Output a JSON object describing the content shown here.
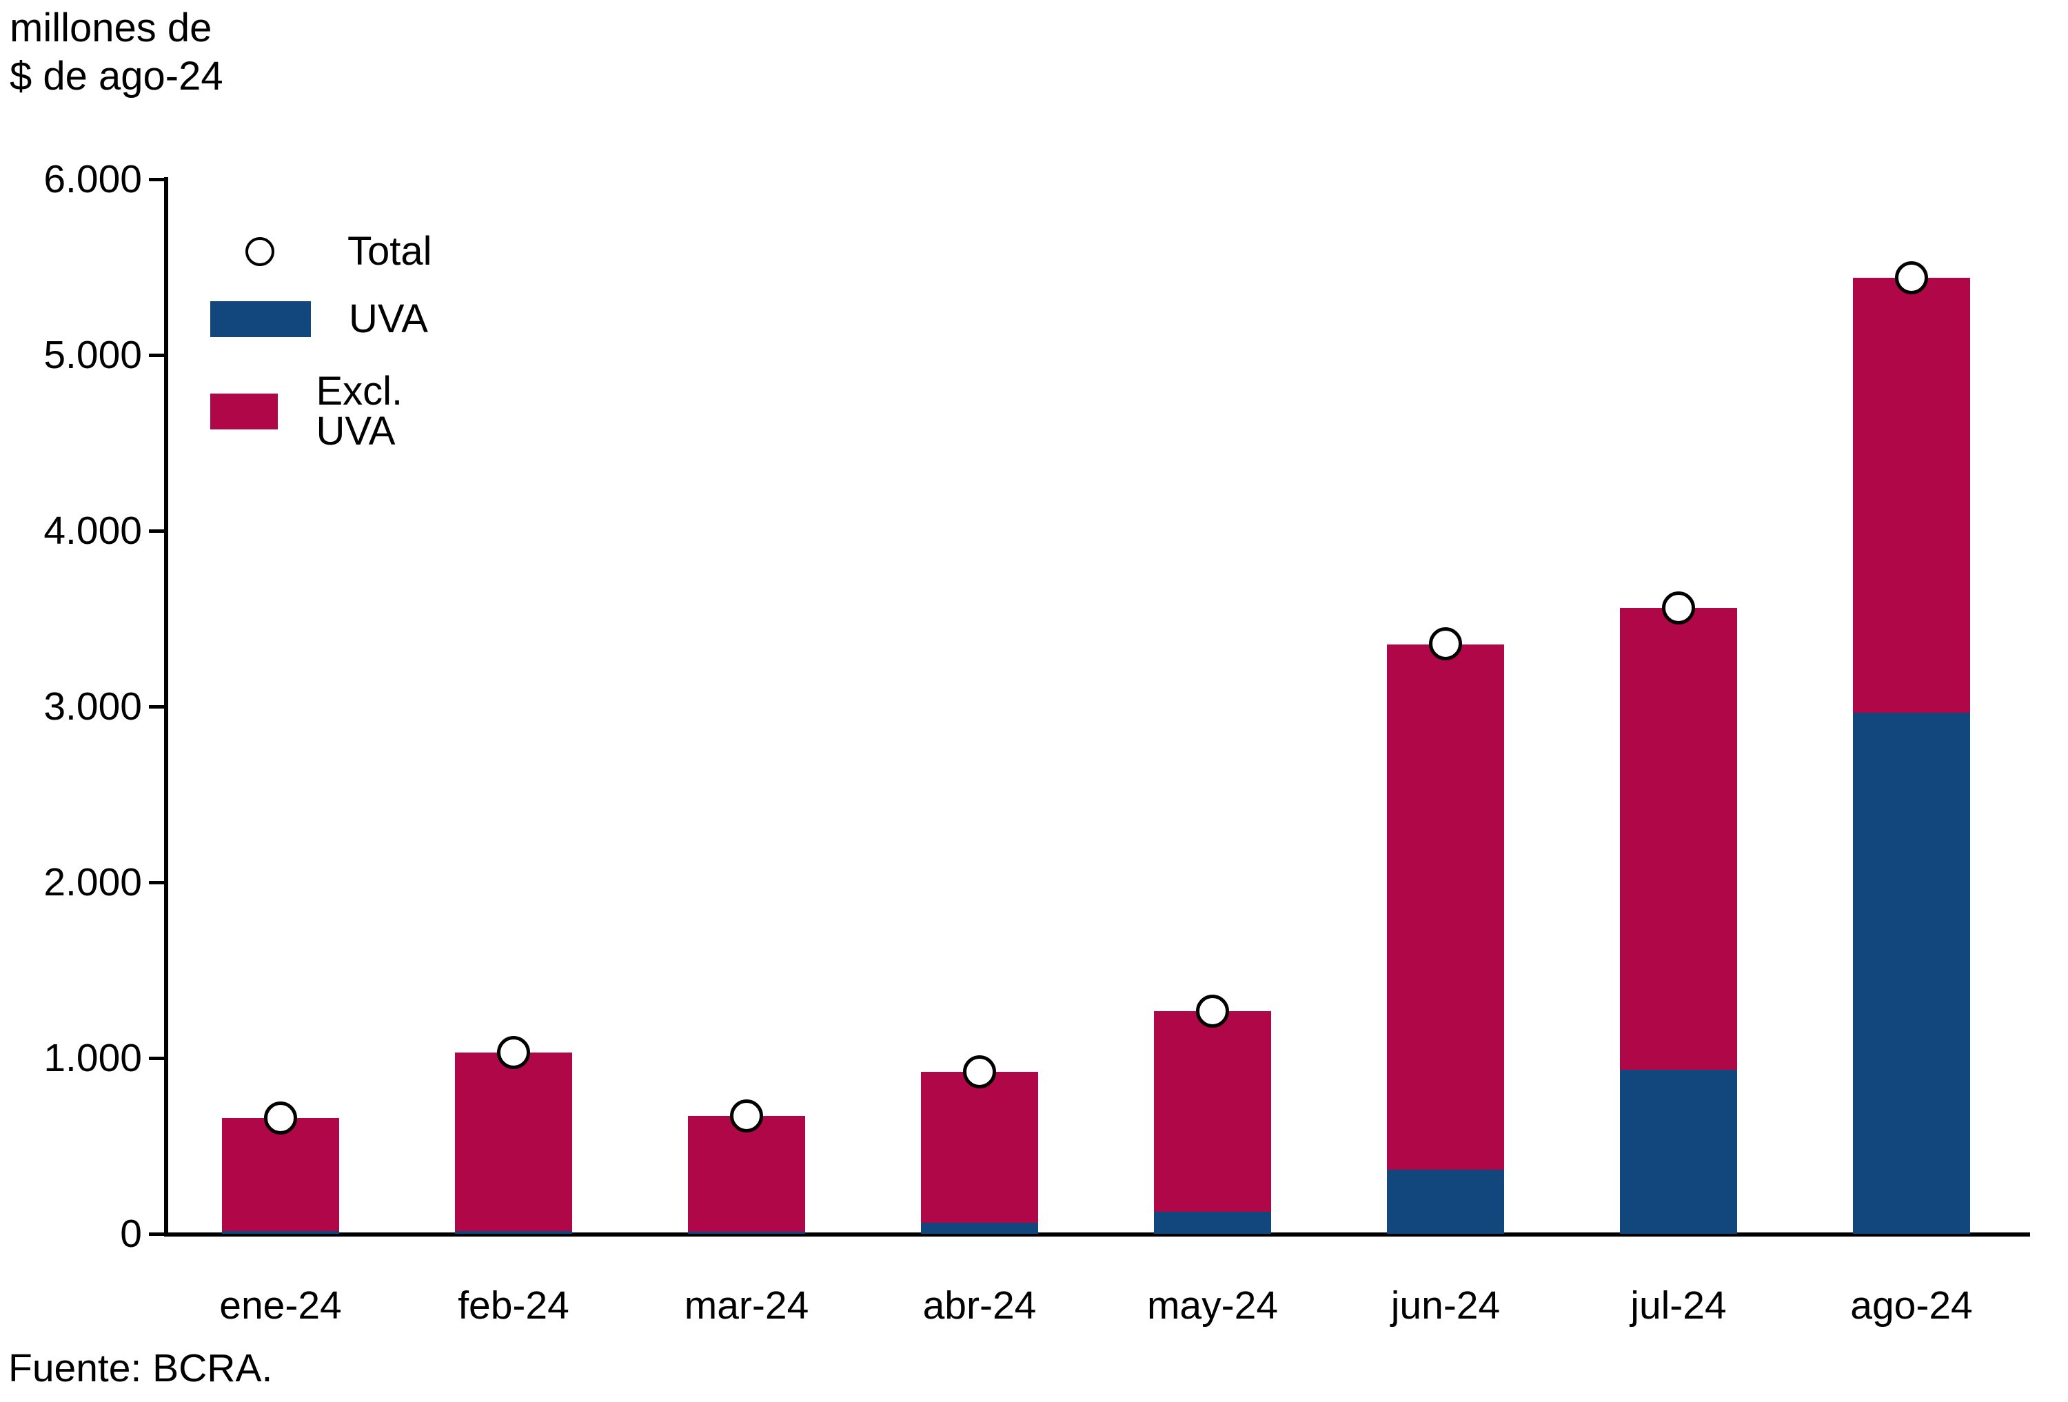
{
  "title": {
    "line1": "millones de",
    "line2": "$ de ago-24"
  },
  "source": "Fuente: BCRA.",
  "legend": {
    "items": [
      {
        "label": "Total",
        "marker": "open-circle"
      },
      {
        "label": "UVA",
        "marker": "filled-square",
        "color": "#11477c"
      },
      {
        "label": "Excl. UVA",
        "marker": "filled-square",
        "color": "#b00748"
      }
    ],
    "position": "upper-left-inside"
  },
  "colors": {
    "uva": "#11477c",
    "excl_uva": "#b00748",
    "axis": "#000000",
    "marker_fill": "#ffffff",
    "marker_stroke": "#000000",
    "background": "#ffffff"
  },
  "chart_data": {
    "type": "bar",
    "stacked": true,
    "title": "millones de $ de ago-24",
    "xlabel": "",
    "ylabel": "millones de $ de ago-24",
    "categories": [
      "ene-24",
      "feb-24",
      "mar-24",
      "abr-24",
      "may-24",
      "jun-24",
      "jul-24",
      "ago-24"
    ],
    "series": [
      {
        "name": "UVA",
        "type": "bar",
        "color": "#11477c",
        "values": [
          15,
          15,
          12,
          63,
          127,
          365,
          933,
          2965
        ]
      },
      {
        "name": "Excl. UVA",
        "type": "bar",
        "color": "#b00748",
        "values": [
          645,
          1015,
          658,
          857,
          1140,
          2990,
          2627,
          2475
        ]
      },
      {
        "name": "Total",
        "type": "scatter",
        "marker": "open-circle",
        "values": [
          660,
          1030,
          670,
          920,
          1267,
          3355,
          3560,
          5440
        ]
      }
    ],
    "ylim": [
      0,
      6000
    ],
    "yticks": [
      {
        "value": 6000,
        "label": "6.000"
      },
      {
        "value": 5000,
        "label": "5.000"
      },
      {
        "value": 4000,
        "label": "4.000"
      },
      {
        "value": 3000,
        "label": "3.000"
      },
      {
        "value": 2000,
        "label": "2.000"
      },
      {
        "value": 1000,
        "label": "1.000"
      },
      {
        "value": 0,
        "label": "0"
      }
    ],
    "grid": false,
    "legend_position": "upper-left-inside"
  }
}
